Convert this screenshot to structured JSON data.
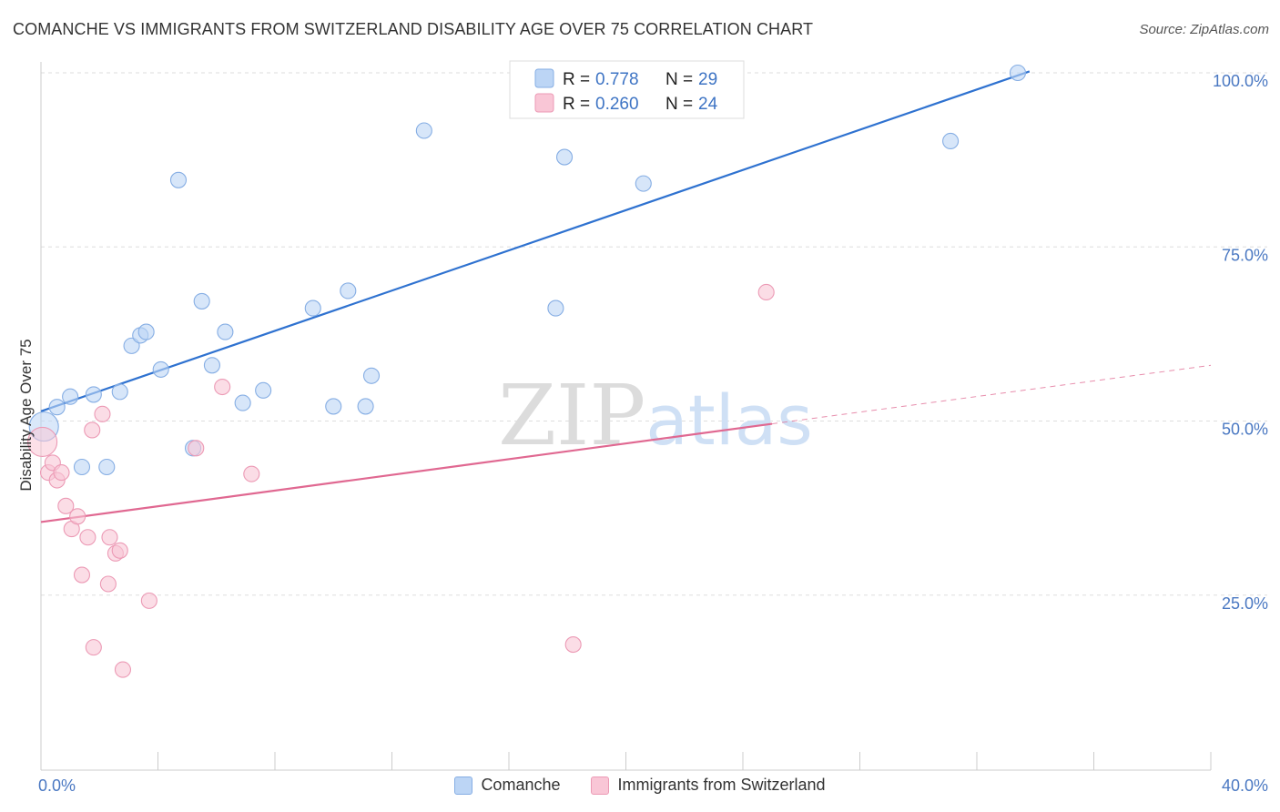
{
  "chart_data": {
    "type": "scatter",
    "title": "COMANCHE VS IMMIGRANTS FROM SWITZERLAND DISABILITY AGE OVER 75 CORRELATION CHART",
    "source": "Source: ZipAtlas.com",
    "xlabel": "",
    "ylabel": "Disability Age Over 75",
    "xlim": [
      0,
      40
    ],
    "ylim": [
      0,
      103
    ],
    "y_ticks": [
      {
        "value": 25,
        "label": "25.0%"
      },
      {
        "value": 50,
        "label": "50.0%"
      },
      {
        "value": 75,
        "label": "75.0%"
      },
      {
        "value": 100,
        "label": "100.0%"
      }
    ],
    "x_tick_labels": {
      "min": "0.0%",
      "max": "40.0%"
    },
    "grid": true,
    "watermark": "ZIPatlas",
    "legend": {
      "position": "top-center",
      "entries": [
        {
          "r_label": "R =",
          "r_value": "0.778",
          "n_label": "N =",
          "n_value": "29",
          "color": "#bcd5f5"
        },
        {
          "r_label": "R =",
          "r_value": "0.260",
          "n_label": "N =",
          "n_value": "24",
          "color": "#f9c6d6"
        }
      ]
    },
    "series": [
      {
        "name": "Comanche",
        "color": "#bcd5f5",
        "stroke": "#86aee4",
        "line_color": "#2f72d0",
        "trend": {
          "x0": 0,
          "y0": 51.4,
          "x1": 33.8,
          "y1": 100.2,
          "dash_to": null
        },
        "points": [
          [
            0.1,
            49.2
          ],
          [
            0.55,
            52.0
          ],
          [
            1.0,
            53.5
          ],
          [
            1.8,
            53.8
          ],
          [
            2.7,
            54.2
          ],
          [
            1.4,
            43.4
          ],
          [
            2.25,
            43.4
          ],
          [
            3.1,
            60.8
          ],
          [
            3.4,
            62.3
          ],
          [
            3.6,
            62.8
          ],
          [
            4.1,
            57.4
          ],
          [
            4.7,
            84.6
          ],
          [
            5.2,
            46.1
          ],
          [
            5.5,
            67.2
          ],
          [
            5.85,
            58.0
          ],
          [
            6.3,
            62.8
          ],
          [
            6.9,
            52.6
          ],
          [
            7.6,
            54.4
          ],
          [
            9.3,
            66.2
          ],
          [
            10.0,
            52.1
          ],
          [
            10.5,
            68.7
          ],
          [
            11.1,
            52.1
          ],
          [
            11.3,
            56.5
          ],
          [
            13.1,
            91.7
          ],
          [
            17.6,
            66.2
          ],
          [
            17.9,
            87.9
          ],
          [
            20.6,
            84.1
          ],
          [
            31.1,
            90.2
          ],
          [
            33.4,
            100.0
          ]
        ]
      },
      {
        "name": "Immigrants from Switzerland",
        "color": "#f9c6d6",
        "stroke": "#ec9ab5",
        "line_color": "#e06891",
        "trend": {
          "x0": 0,
          "y0": 35.5,
          "x1": 25.0,
          "y1": 49.6,
          "dash_to": {
            "x": 40,
            "y": 58.0
          }
        },
        "points": [
          [
            0.05,
            47.0
          ],
          [
            0.25,
            42.6
          ],
          [
            0.4,
            44.0
          ],
          [
            0.55,
            41.5
          ],
          [
            0.7,
            42.6
          ],
          [
            0.85,
            37.8
          ],
          [
            1.05,
            34.5
          ],
          [
            1.25,
            36.3
          ],
          [
            1.4,
            27.9
          ],
          [
            1.6,
            33.3
          ],
          [
            1.75,
            48.7
          ],
          [
            1.8,
            17.5
          ],
          [
            2.1,
            51.0
          ],
          [
            2.3,
            26.6
          ],
          [
            2.35,
            33.3
          ],
          [
            2.55,
            31.0
          ],
          [
            2.7,
            31.4
          ],
          [
            2.8,
            14.3
          ],
          [
            3.7,
            24.2
          ],
          [
            5.3,
            46.1
          ],
          [
            6.2,
            54.9
          ],
          [
            7.2,
            42.4
          ],
          [
            18.2,
            17.9
          ],
          [
            24.8,
            68.5
          ]
        ]
      }
    ]
  }
}
